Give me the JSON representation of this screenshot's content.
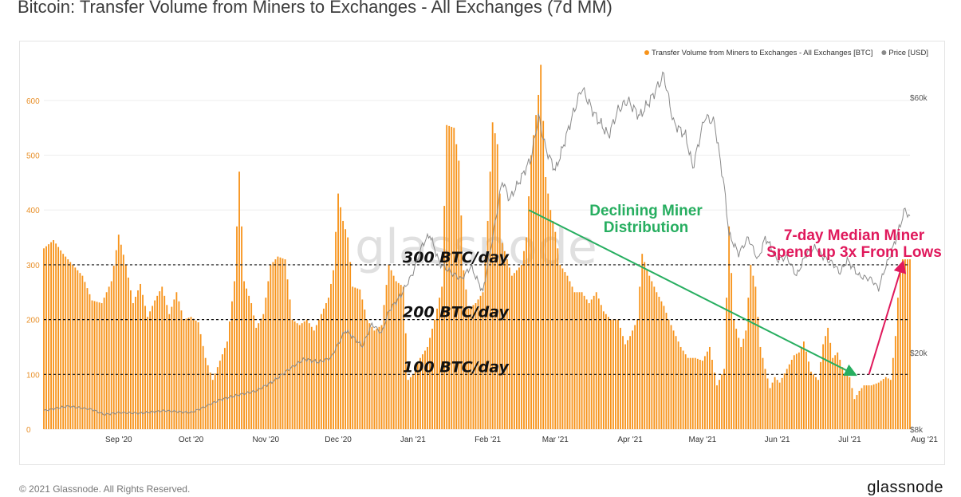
{
  "header": {
    "title": "Bitcoin: Transfer Volume from Miners to Exchanges - All Exchanges (7d MM)"
  },
  "footer": {
    "copyright": "© 2021 Glassnode. All Rights Reserved.",
    "brand": "glassnode"
  },
  "watermark": "glassnode",
  "colors": {
    "bar": "#f7931a",
    "price": "#8a8a8a",
    "trend": "#27ae60",
    "spike": "#e0195c",
    "grid": "#eeeeee",
    "axis_left": "#e8902a",
    "axis_right": "#555555"
  },
  "chart_data": {
    "type": "bar",
    "title": "Bitcoin: Transfer Volume from Miners to Exchanges - All Exchanges (7d MM)",
    "xlabel": "",
    "ylabel": "",
    "ylim": [
      0,
      690
    ],
    "y_ticks": [
      0,
      100,
      200,
      300,
      400,
      500,
      600
    ],
    "y_right_ticks": [
      "$8k",
      "$20k",
      "$60k"
    ],
    "x_range": [
      0,
      359
    ],
    "x_ticks": [
      {
        "label": "Sep '20",
        "x": 31
      },
      {
        "label": "Oct '20",
        "x": 61
      },
      {
        "label": "Nov '20",
        "x": 92
      },
      {
        "label": "Dec '20",
        "x": 122
      },
      {
        "label": "Jan '21",
        "x": 153
      },
      {
        "label": "Feb '21",
        "x": 184
      },
      {
        "label": "Mar '21",
        "x": 212
      },
      {
        "label": "Apr '21",
        "x": 243
      },
      {
        "label": "May '21",
        "x": 273
      },
      {
        "label": "Jun '21",
        "x": 304
      },
      {
        "label": "Jul '21",
        "x": 334
      },
      {
        "label": "Aug '21",
        "x": 365
      }
    ],
    "legend": [
      {
        "label": "Transfer Volume from Miners to Exchanges - All Exchanges [BTC]",
        "color": "#f7931a"
      },
      {
        "label": "Price [USD]",
        "color": "#8a8a8a"
      }
    ],
    "legend_position": "top-right",
    "reference_lines": [
      {
        "value": 300,
        "label": "300 BTC/day"
      },
      {
        "value": 200,
        "label": "200 BTC/day"
      },
      {
        "value": 100,
        "label": "100 BTC/day"
      }
    ],
    "annotations": [
      {
        "text": [
          "Declining Miner",
          "Distribution"
        ],
        "color": "#27ae60"
      },
      {
        "text": [
          "7-day Median Miner",
          "Spend up 3x From Lows"
        ],
        "color": "#e0195c"
      }
    ],
    "trend_arrows": [
      {
        "from": [
          201,
          400
        ],
        "to": [
          336,
          100
        ],
        "color": "#27ae60"
      },
      {
        "from": [
          342,
          100
        ],
        "to": [
          356,
          303
        ],
        "color": "#e0195c"
      }
    ],
    "series": [
      {
        "name": "Transfer Volume from Miners to Exchanges - All Exchanges [BTC]",
        "axis": "left",
        "keypoints": [
          [
            0,
            330
          ],
          [
            4,
            345
          ],
          [
            8,
            320
          ],
          [
            12,
            300
          ],
          [
            16,
            280
          ],
          [
            20,
            235
          ],
          [
            24,
            230
          ],
          [
            28,
            270
          ],
          [
            31,
            355
          ],
          [
            34,
            300
          ],
          [
            37,
            230
          ],
          [
            40,
            265
          ],
          [
            43,
            205
          ],
          [
            46,
            235
          ],
          [
            49,
            260
          ],
          [
            52,
            210
          ],
          [
            55,
            250
          ],
          [
            58,
            200
          ],
          [
            61,
            205
          ],
          [
            64,
            195
          ],
          [
            67,
            130
          ],
          [
            70,
            90
          ],
          [
            73,
            125
          ],
          [
            76,
            160
          ],
          [
            79,
            270
          ],
          [
            81,
            470
          ],
          [
            83,
            270
          ],
          [
            86,
            230
          ],
          [
            88,
            185
          ],
          [
            91,
            210
          ],
          [
            94,
            300
          ],
          [
            97,
            315
          ],
          [
            100,
            310
          ],
          [
            103,
            200
          ],
          [
            106,
            190
          ],
          [
            109,
            200
          ],
          [
            112,
            180
          ],
          [
            115,
            210
          ],
          [
            118,
            240
          ],
          [
            120,
            290
          ],
          [
            122,
            430
          ],
          [
            124,
            380
          ],
          [
            126,
            350
          ],
          [
            128,
            260
          ],
          [
            131,
            255
          ],
          [
            134,
            200
          ],
          [
            137,
            180
          ],
          [
            140,
            190
          ],
          [
            143,
            300
          ],
          [
            146,
            270
          ],
          [
            149,
            260
          ],
          [
            151,
            90
          ],
          [
            153,
            100
          ],
          [
            156,
            130
          ],
          [
            159,
            150
          ],
          [
            162,
            200
          ],
          [
            165,
            260
          ],
          [
            167,
            555
          ],
          [
            170,
            550
          ],
          [
            172,
            490
          ],
          [
            174,
            290
          ],
          [
            176,
            220
          ],
          [
            179,
            230
          ],
          [
            182,
            250
          ],
          [
            184,
            380
          ],
          [
            186,
            560
          ],
          [
            188,
            520
          ],
          [
            190,
            340
          ],
          [
            192,
            310
          ],
          [
            194,
            280
          ],
          [
            196,
            290
          ],
          [
            198,
            300
          ],
          [
            200,
            350
          ],
          [
            202,
            500
          ],
          [
            205,
            610
          ],
          [
            206,
            665
          ],
          [
            208,
            460
          ],
          [
            210,
            400
          ],
          [
            212,
            360
          ],
          [
            214,
            300
          ],
          [
            217,
            280
          ],
          [
            220,
            250
          ],
          [
            223,
            250
          ],
          [
            226,
            230
          ],
          [
            229,
            250
          ],
          [
            232,
            215
          ],
          [
            235,
            200
          ],
          [
            238,
            200
          ],
          [
            241,
            155
          ],
          [
            243,
            170
          ],
          [
            246,
            200
          ],
          [
            248,
            320
          ],
          [
            250,
            290
          ],
          [
            252,
            270
          ],
          [
            254,
            250
          ],
          [
            257,
            225
          ],
          [
            259,
            200
          ],
          [
            261,
            180
          ],
          [
            264,
            150
          ],
          [
            267,
            130
          ],
          [
            270,
            130
          ],
          [
            273,
            125
          ],
          [
            276,
            150
          ],
          [
            279,
            80
          ],
          [
            282,
            110
          ],
          [
            284,
            370
          ],
          [
            286,
            200
          ],
          [
            289,
            150
          ],
          [
            291,
            180
          ],
          [
            293,
            300
          ],
          [
            295,
            260
          ],
          [
            297,
            150
          ],
          [
            299,
            110
          ],
          [
            301,
            75
          ],
          [
            303,
            95
          ],
          [
            305,
            85
          ],
          [
            308,
            110
          ],
          [
            311,
            135
          ],
          [
            313,
            140
          ],
          [
            315,
            160
          ],
          [
            318,
            105
          ],
          [
            321,
            90
          ],
          [
            323,
            155
          ],
          [
            325,
            185
          ],
          [
            327,
            130
          ],
          [
            329,
            140
          ],
          [
            332,
            100
          ],
          [
            334,
            95
          ],
          [
            336,
            55
          ],
          [
            338,
            70
          ],
          [
            340,
            80
          ],
          [
            343,
            80
          ],
          [
            346,
            85
          ],
          [
            349,
            95
          ],
          [
            351,
            90
          ],
          [
            353,
            170
          ],
          [
            354,
            240
          ],
          [
            355,
            300
          ],
          [
            356,
            310
          ]
        ]
      },
      {
        "name": "Price [USD]",
        "axis": "right",
        "keypoints": [
          [
            0,
            10900
          ],
          [
            10,
            11600
          ],
          [
            20,
            11100
          ],
          [
            25,
            10300
          ],
          [
            31,
            10600
          ],
          [
            40,
            10500
          ],
          [
            50,
            10900
          ],
          [
            61,
            10600
          ],
          [
            66,
            11400
          ],
          [
            73,
            12600
          ],
          [
            81,
            13400
          ],
          [
            88,
            14000
          ],
          [
            95,
            15500
          ],
          [
            102,
            17500
          ],
          [
            108,
            19000
          ],
          [
            114,
            18500
          ],
          [
            119,
            19200
          ],
          [
            125,
            23500
          ],
          [
            128,
            22500
          ],
          [
            132,
            21000
          ],
          [
            136,
            24500
          ],
          [
            140,
            23000
          ],
          [
            143,
            26500
          ],
          [
            148,
            29000
          ],
          [
            153,
            32500
          ],
          [
            157,
            37000
          ],
          [
            160,
            38500
          ],
          [
            164,
            34000
          ],
          [
            169,
            32500
          ],
          [
            173,
            31500
          ],
          [
            177,
            33500
          ],
          [
            182,
            29500
          ],
          [
            186,
            38000
          ],
          [
            190,
            47000
          ],
          [
            193,
            44000
          ],
          [
            198,
            47500
          ],
          [
            202,
            50500
          ],
          [
            205,
            57000
          ],
          [
            208,
            52000
          ],
          [
            212,
            48500
          ],
          [
            215,
            52000
          ],
          [
            219,
            57000
          ],
          [
            223,
            61500
          ],
          [
            228,
            57500
          ],
          [
            234,
            54000
          ],
          [
            238,
            58000
          ],
          [
            242,
            59500
          ],
          [
            247,
            57000
          ],
          [
            252,
            60000
          ],
          [
            257,
            63500
          ],
          [
            261,
            56000
          ],
          [
            266,
            54000
          ],
          [
            269,
            49000
          ],
          [
            274,
            57000
          ],
          [
            278,
            56000
          ],
          [
            282,
            46000
          ],
          [
            284,
            38500
          ],
          [
            288,
            35500
          ],
          [
            292,
            38000
          ],
          [
            296,
            34500
          ],
          [
            299,
            38000
          ],
          [
            301,
            36800
          ],
          [
            304,
            34500
          ],
          [
            308,
            35000
          ],
          [
            312,
            32000
          ],
          [
            316,
            35500
          ],
          [
            320,
            36500
          ],
          [
            323,
            35000
          ],
          [
            327,
            34000
          ],
          [
            330,
            32500
          ],
          [
            333,
            34500
          ],
          [
            338,
            32000
          ],
          [
            343,
            31500
          ],
          [
            346,
            30000
          ],
          [
            348,
            32500
          ],
          [
            352,
            36500
          ],
          [
            355,
            40000
          ],
          [
            357,
            42500
          ],
          [
            359,
            41000
          ]
        ]
      }
    ]
  }
}
